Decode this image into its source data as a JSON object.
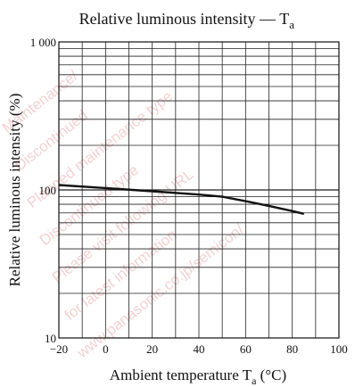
{
  "chart_data": {
    "type": "line",
    "title_main": "Relative luminous intensity — T",
    "title_sub": "a",
    "xlabel_main": "Ambient temperature  T",
    "xlabel_sub": "a",
    "xlabel_unit": "  (°C)",
    "ylabel": "Relative luminous intensity  (%)",
    "xlim": [
      -20,
      100
    ],
    "ylim": [
      10,
      1000
    ],
    "yscale": "log",
    "x_ticks": [
      "−20",
      "0",
      "20",
      "40",
      "60",
      "80",
      "100"
    ],
    "y_ticks": [
      "10",
      "100",
      "1 000"
    ],
    "grid": true,
    "series": [
      {
        "color": "#111111",
        "x": [
          -20,
          0,
          20,
          40,
          50,
          60,
          70,
          80,
          85
        ],
        "y": [
          108,
          103,
          98,
          93,
          90,
          84,
          78,
          72,
          69
        ]
      }
    ]
  },
  "watermark": {
    "texts": [
      "Maintenance/",
      "Discontinued",
      "Planned maintenance type",
      "Discontinued type",
      "Please visit following URL",
      "for latest information",
      "www.panasonic.co.jp/semicon/"
    ],
    "color": "#e07b7b"
  }
}
